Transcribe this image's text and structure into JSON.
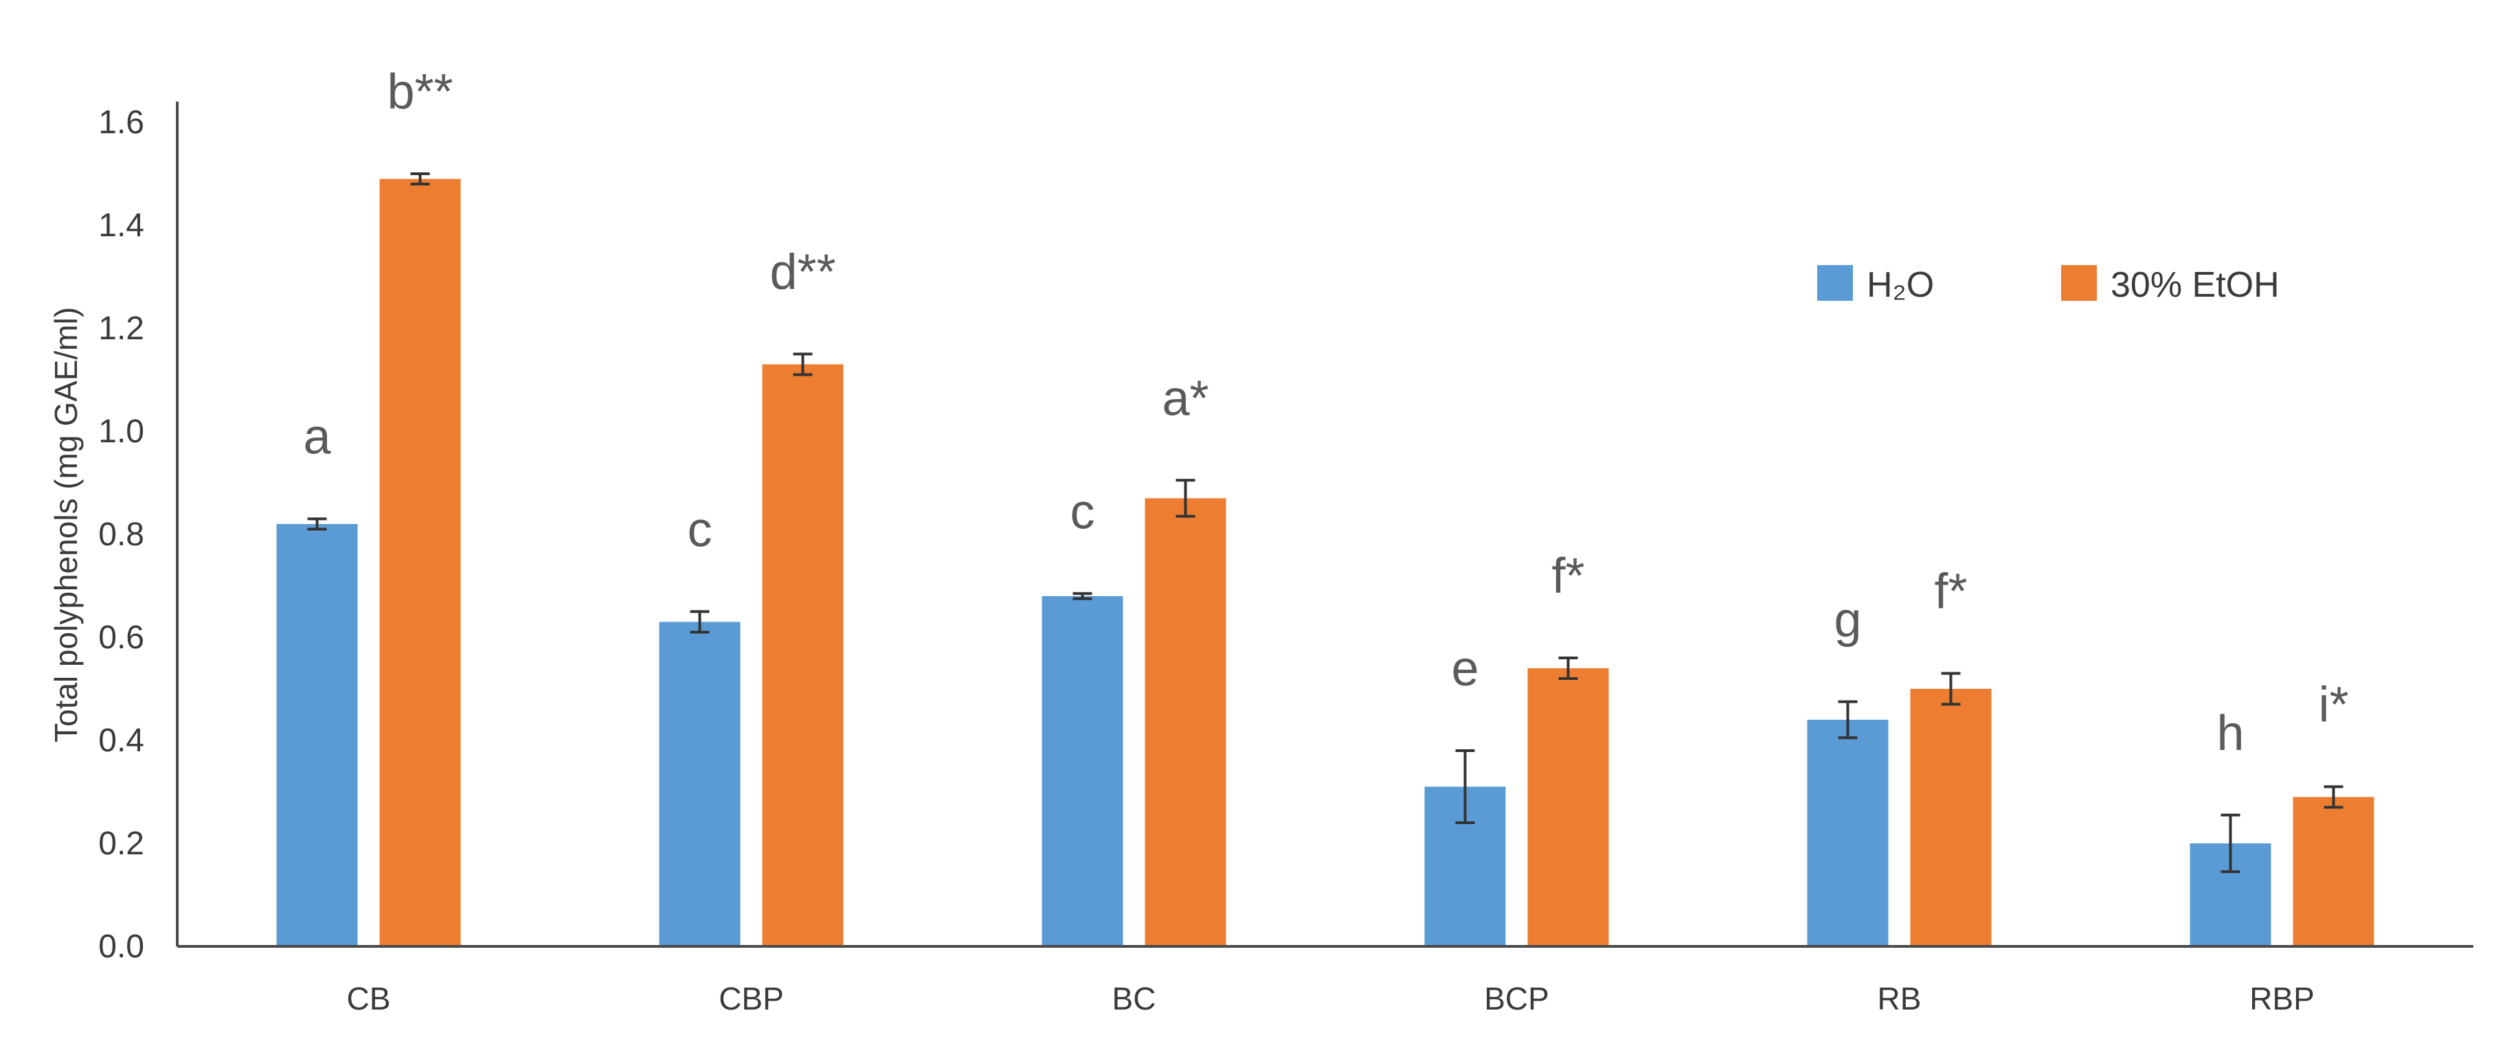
{
  "chart_data": {
    "type": "bar",
    "title": "",
    "xlabel": "",
    "ylabel": "Total polyphenols (mg GAE/ml)",
    "ylim": [
      0,
      1.6
    ],
    "yticks": [
      "0.0",
      "0.2",
      "0.4",
      "0.6",
      "0.8",
      "1.0",
      "1.2",
      "1.4",
      "1.6"
    ],
    "grid": false,
    "legend_position": "top-right",
    "categories": [
      "CB",
      "CBP",
      "BC",
      "BCP",
      "RB",
      "RBP"
    ],
    "series": [
      {
        "name": "H₂O",
        "color": "#5b9bd5",
        "values": [
          0.82,
          0.63,
          0.68,
          0.31,
          0.44,
          0.2
        ],
        "errors": [
          0.01,
          0.02,
          0.005,
          0.07,
          0.035,
          0.055
        ],
        "labels": [
          "a",
          "c",
          "c",
          "e",
          "g",
          "h"
        ]
      },
      {
        "name": "30% EtOH",
        "color": "#ed7d31",
        "values": [
          1.49,
          1.13,
          0.87,
          0.54,
          0.5,
          0.29
        ],
        "errors": [
          0.01,
          0.02,
          0.035,
          0.02,
          0.03,
          0.02
        ],
        "labels": [
          "b**",
          "d**",
          "a*",
          "f*",
          "f*",
          "i*"
        ]
      }
    ]
  }
}
